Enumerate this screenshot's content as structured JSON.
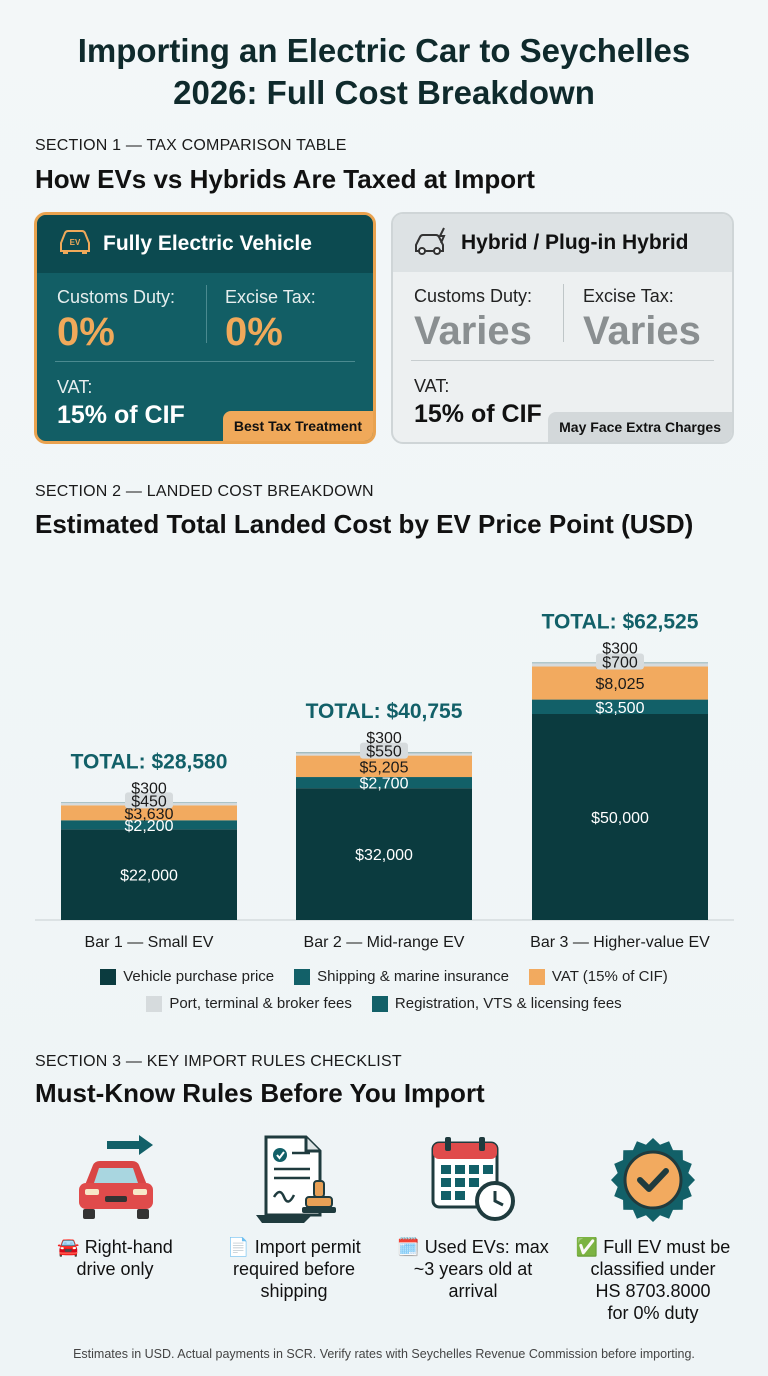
{
  "title_line1": "Importing an Electric Car to Seychelles",
  "title_line2": "2026: Full Cost Breakdown",
  "section1": {
    "label": "SECTION 1 — TAX COMPARISON TABLE",
    "heading": "How EVs vs Hybrids Are Taxed at Import",
    "ev_card": {
      "title": "Fully Electric Vehicle",
      "icon_text": "EV",
      "customs_label": "Customs Duty:",
      "customs_value": "0%",
      "excise_label": "Excise Tax:",
      "excise_value": "0%",
      "vat_label": "VAT:",
      "vat_value": "15% of CIF",
      "badge": "Best Tax Treatment"
    },
    "hybrid_card": {
      "title": "Hybrid / Plug-in Hybrid",
      "customs_label": "Customs Duty:",
      "customs_value": "Varies",
      "excise_label": "Excise Tax:",
      "excise_value": "Varies",
      "vat_label": "VAT:",
      "vat_value": "15% of CIF",
      "badge": "May Face Extra Charges"
    }
  },
  "section2": {
    "label": "SECTION 2 — LANDED COST BREAKDOWN",
    "heading": "Estimated Total Landed Cost by EV Price Point (USD)"
  },
  "chart_data": {
    "type": "bar",
    "stacked": true,
    "categories": [
      "Bar 1 — Small EV",
      "Bar 2 — Mid-range EV",
      "Bar 3 — Higher-value EV"
    ],
    "totals": [
      "TOTAL: $28,580",
      "TOTAL: $40,755",
      "TOTAL: $62,525"
    ],
    "series": [
      {
        "name": "Vehicle purchase price",
        "values": [
          22000,
          32000,
          50000
        ],
        "labels": [
          "$22,000",
          "$32,000",
          "$50,000"
        ],
        "color": "#0b3b3f"
      },
      {
        "name": "Shipping & marine insurance",
        "values": [
          2200,
          2700,
          3500
        ],
        "labels": [
          "$2,200",
          "$2,700",
          "$3,500"
        ],
        "color": "#126068"
      },
      {
        "name": "VAT (15% of CIF)",
        "values": [
          3630,
          5205,
          8025
        ],
        "labels": [
          "$3,630",
          "$5,205",
          "$8,025"
        ],
        "color": "#f2aa5f"
      },
      {
        "name": "Port, terminal & broker fees",
        "values": [
          450,
          550,
          700
        ],
        "labels": [
          "$450",
          "$550",
          "$700"
        ],
        "color": "#d6dbdd"
      },
      {
        "name": "Registration, VTS & licensing fees",
        "values": [
          300,
          300,
          300
        ],
        "labels": [
          "$300",
          "$300",
          "$300"
        ],
        "color": "#126068"
      }
    ],
    "legend_position": "bottom",
    "grid": false
  },
  "section3": {
    "label": "SECTION 3 — KEY IMPORT RULES CHECKLIST",
    "heading": "Must-Know Rules Before You Import",
    "rules": [
      {
        "emoji": "🚘",
        "line1": "Right-hand",
        "line2": "drive only",
        "line3": "",
        "line4": ""
      },
      {
        "emoji": "📄",
        "line1": "Import permit",
        "line2": "required before",
        "line3": "shipping",
        "line4": ""
      },
      {
        "emoji": "🗓️",
        "line1": "Used EVs: max",
        "line2": "~3 years old at",
        "line3": "arrival",
        "line4": ""
      },
      {
        "emoji": "✅",
        "line1": "Full EV must be",
        "line2": "classified under",
        "line3": "HS 8703.8000",
        "line4": "for 0% duty"
      }
    ]
  },
  "footer": "Estimates in USD. Actual payments in SCR. Verify rates with Seychelles Revenue Commission before importing."
}
